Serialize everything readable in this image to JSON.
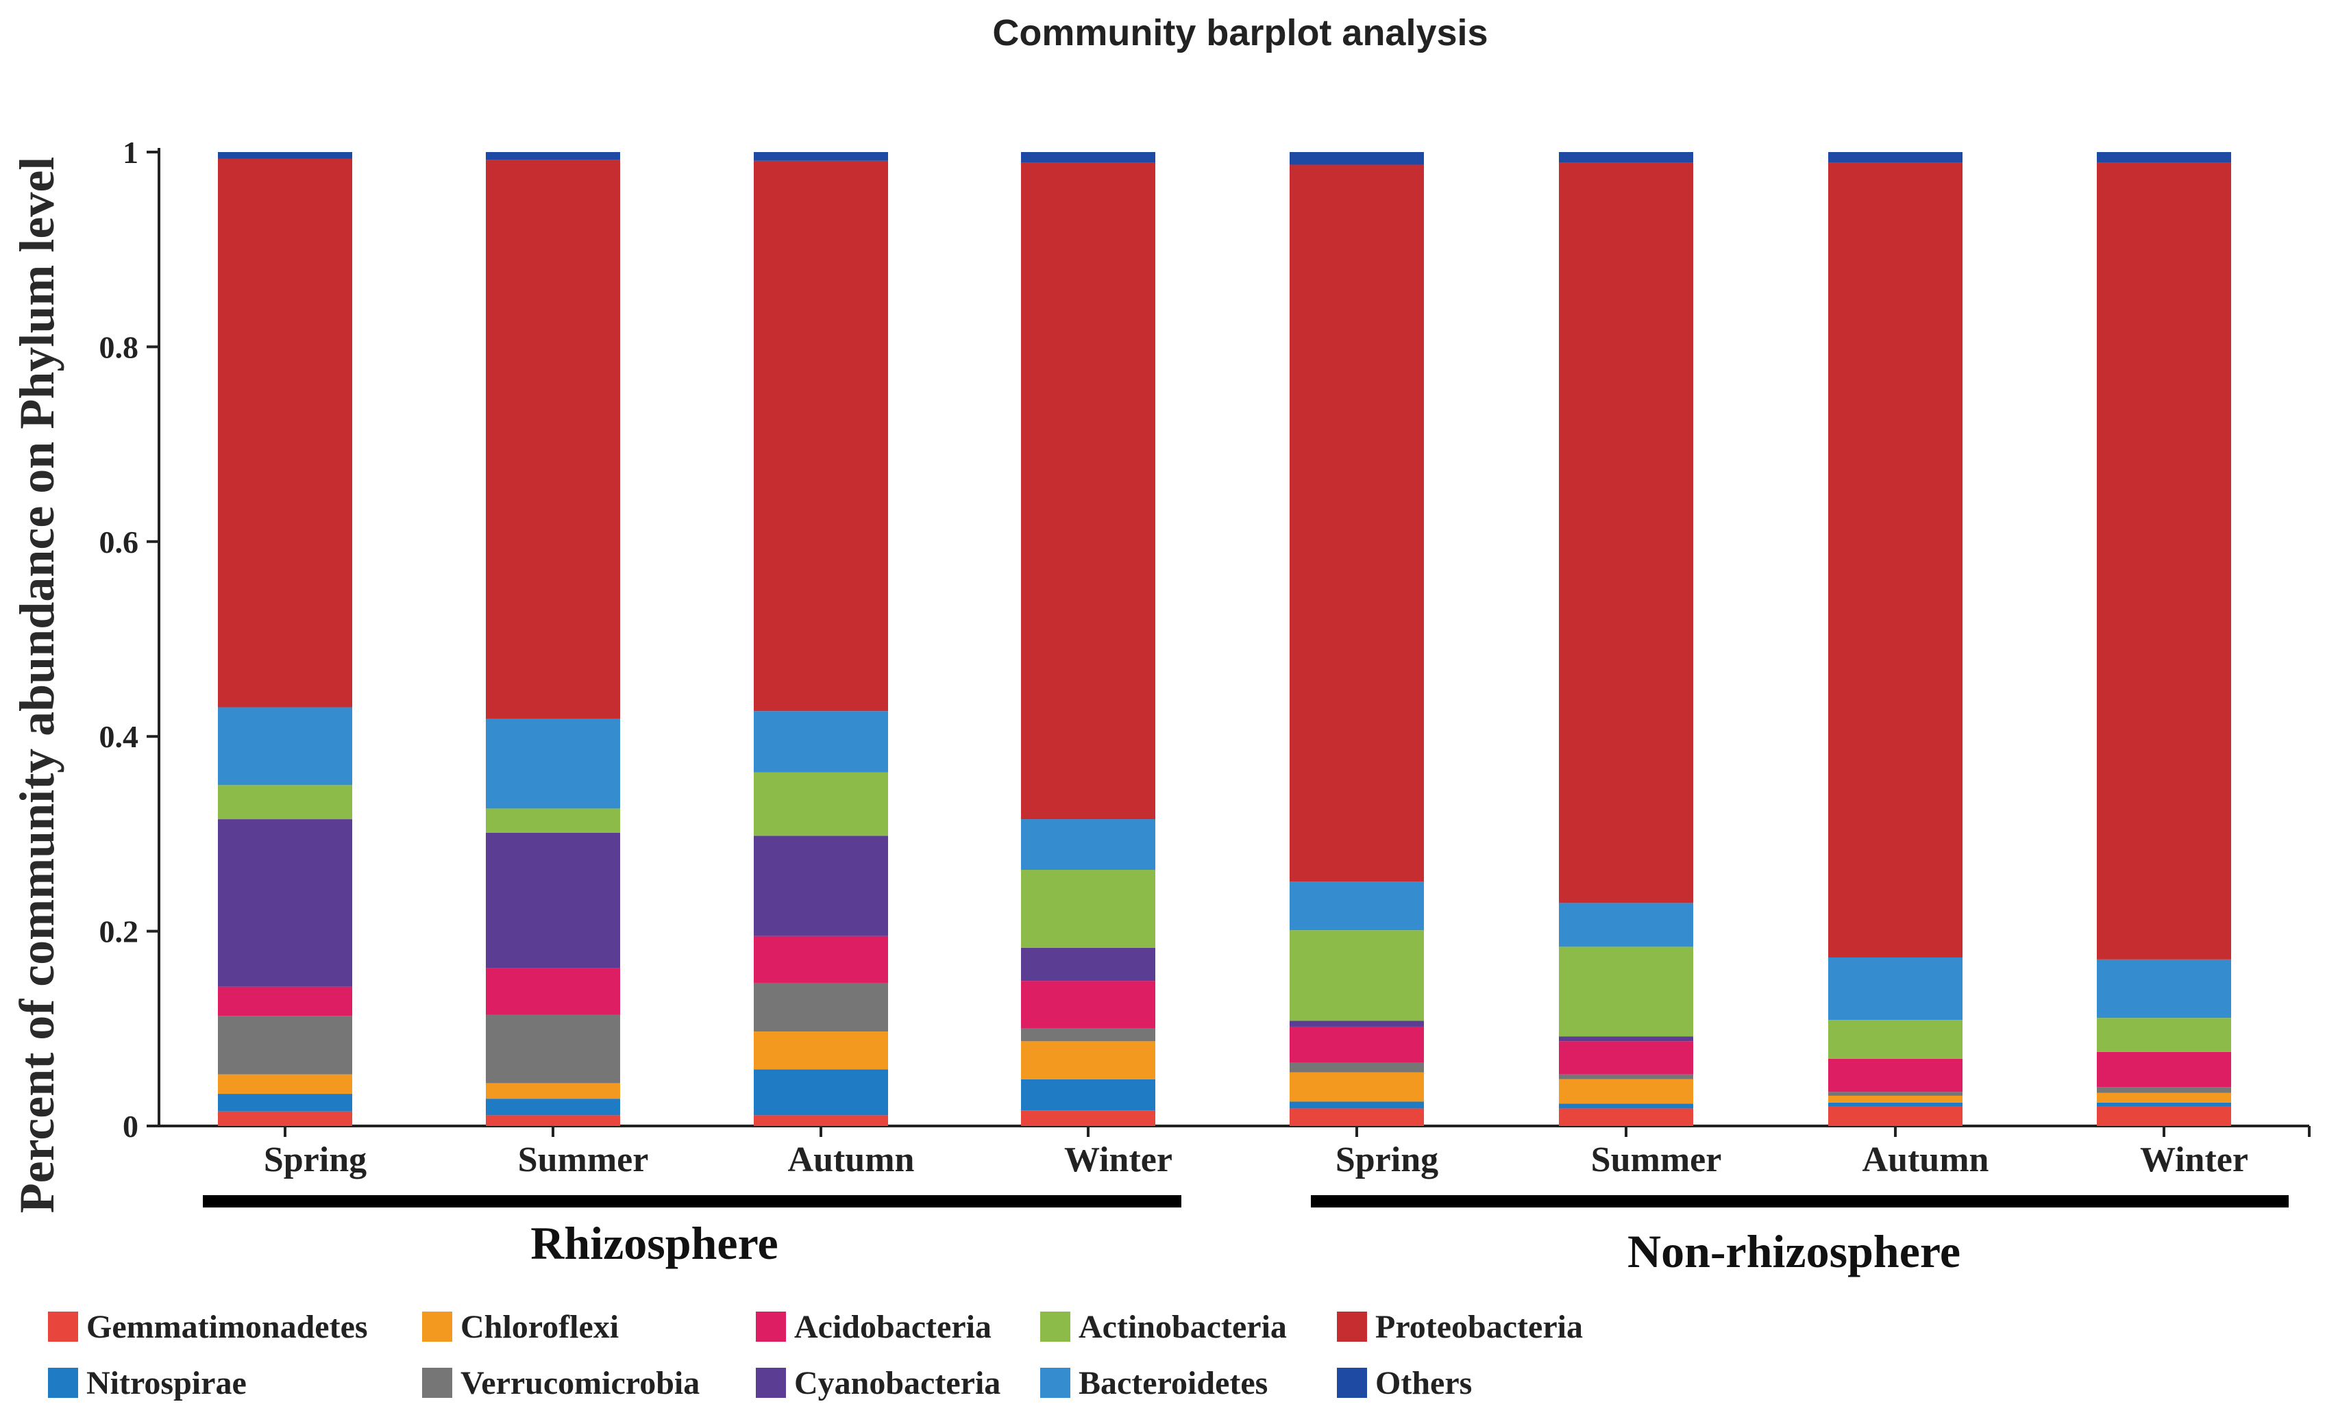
{
  "chart_data": {
    "type": "bar",
    "stacked": true,
    "title": "Community barplot analysis",
    "ylabel": "Percent of community abundance on Phylum level",
    "xlabel": "",
    "ylim": [
      0,
      1
    ],
    "yticks": [
      "0",
      "0.2",
      "0.4",
      "0.6",
      "0.8",
      "1"
    ],
    "categories": [
      "Spring",
      "Summer",
      "Autumn",
      "Winter",
      "Spring",
      "Summer",
      "Autumn",
      "Winter"
    ],
    "groups": [
      {
        "label": "Rhizosphere",
        "start": 0,
        "end": 3
      },
      {
        "label": "Non-rhizosphere",
        "start": 4,
        "end": 7
      }
    ],
    "series": [
      {
        "name": "Gemmatimonadetes",
        "color": "#e8453c",
        "values": [
          0.015,
          0.011,
          0.011,
          0.016,
          0.018,
          0.018,
          0.02,
          0.02
        ]
      },
      {
        "name": "Nitrospirae",
        "color": "#1f7bc4",
        "values": [
          0.018,
          0.017,
          0.047,
          0.032,
          0.007,
          0.005,
          0.004,
          0.004
        ]
      },
      {
        "name": "Chloroflexi",
        "color": "#f3991f",
        "values": [
          0.02,
          0.016,
          0.039,
          0.039,
          0.03,
          0.025,
          0.007,
          0.01
        ]
      },
      {
        "name": "Verrucomicrobia",
        "color": "#767676",
        "values": [
          0.06,
          0.07,
          0.05,
          0.013,
          0.01,
          0.005,
          0.004,
          0.006
        ]
      },
      {
        "name": "Acidobacteria",
        "color": "#dd1e63",
        "values": [
          0.03,
          0.048,
          0.048,
          0.049,
          0.037,
          0.034,
          0.034,
          0.036
        ]
      },
      {
        "name": "Cyanobacteria",
        "color": "#5b3d94",
        "values": [
          0.172,
          0.139,
          0.103,
          0.034,
          0.006,
          0.005,
          0.0,
          0.0
        ]
      },
      {
        "name": "Actinobacteria",
        "color": "#8dbb49",
        "values": [
          0.035,
          0.025,
          0.065,
          0.08,
          0.093,
          0.092,
          0.04,
          0.035
        ]
      },
      {
        "name": "Bacteroidetes",
        "color": "#358dcf",
        "values": [
          0.08,
          0.092,
          0.063,
          0.052,
          0.05,
          0.045,
          0.064,
          0.06
        ]
      },
      {
        "name": "Proteobacteria",
        "color": "#c62d31",
        "values": [
          0.563,
          0.574,
          0.565,
          0.674,
          0.736,
          0.76,
          0.816,
          0.818
        ]
      },
      {
        "name": "Others",
        "color": "#1f4aa4",
        "values": [
          0.007,
          0.008,
          0.009,
          0.011,
          0.013,
          0.011,
          0.011,
          0.011
        ]
      }
    ],
    "legend_order": [
      "Gemmatimonadetes",
      "Chloroflexi",
      "Acidobacteria",
      "Actinobacteria",
      "Proteobacteria",
      "Nitrospirae",
      "Verrucomicrobia",
      "Cyanobacteria",
      "Bacteroidetes",
      "Others"
    ]
  }
}
